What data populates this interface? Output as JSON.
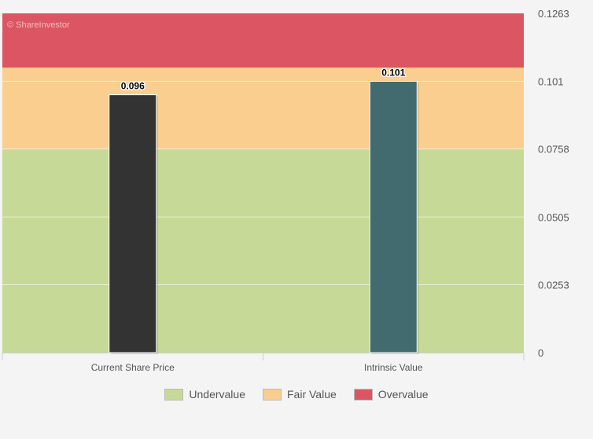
{
  "chart_data": {
    "type": "bar",
    "watermark": "© ShareInvestor",
    "categories": [
      "Current Share Price",
      "Intrinsic Value"
    ],
    "values": [
      0.096,
      0.101
    ],
    "value_labels": [
      "0.096",
      "0.101"
    ],
    "bar_colors": [
      "#333333",
      "#416b6e"
    ],
    "ylim": [
      0,
      0.1263
    ],
    "yticks": [
      0,
      0.0253,
      0.0505,
      0.0758,
      0.101,
      0.1263
    ],
    "ytick_labels": [
      "0",
      "0.0253",
      "0.0505",
      "0.0758",
      "0.101",
      "0.1263"
    ],
    "y_axis_side": "right",
    "grid": true,
    "bands": [
      {
        "name": "Undervalue",
        "from": 0,
        "to": 0.0758,
        "color": "#c6d996"
      },
      {
        "name": "Fair Value",
        "from": 0.0758,
        "to": 0.1061,
        "color": "#f9ce8f"
      },
      {
        "name": "Overvalue",
        "from": 0.1061,
        "to": 0.1263,
        "color": "#db5662"
      }
    ],
    "legend": {
      "placement": "bottom-center",
      "entries": [
        {
          "label": "Undervalue",
          "color": "#c6d996"
        },
        {
          "label": "Fair Value",
          "color": "#f9ce8f"
        },
        {
          "label": "Overvalue",
          "color": "#db5662"
        }
      ]
    }
  }
}
